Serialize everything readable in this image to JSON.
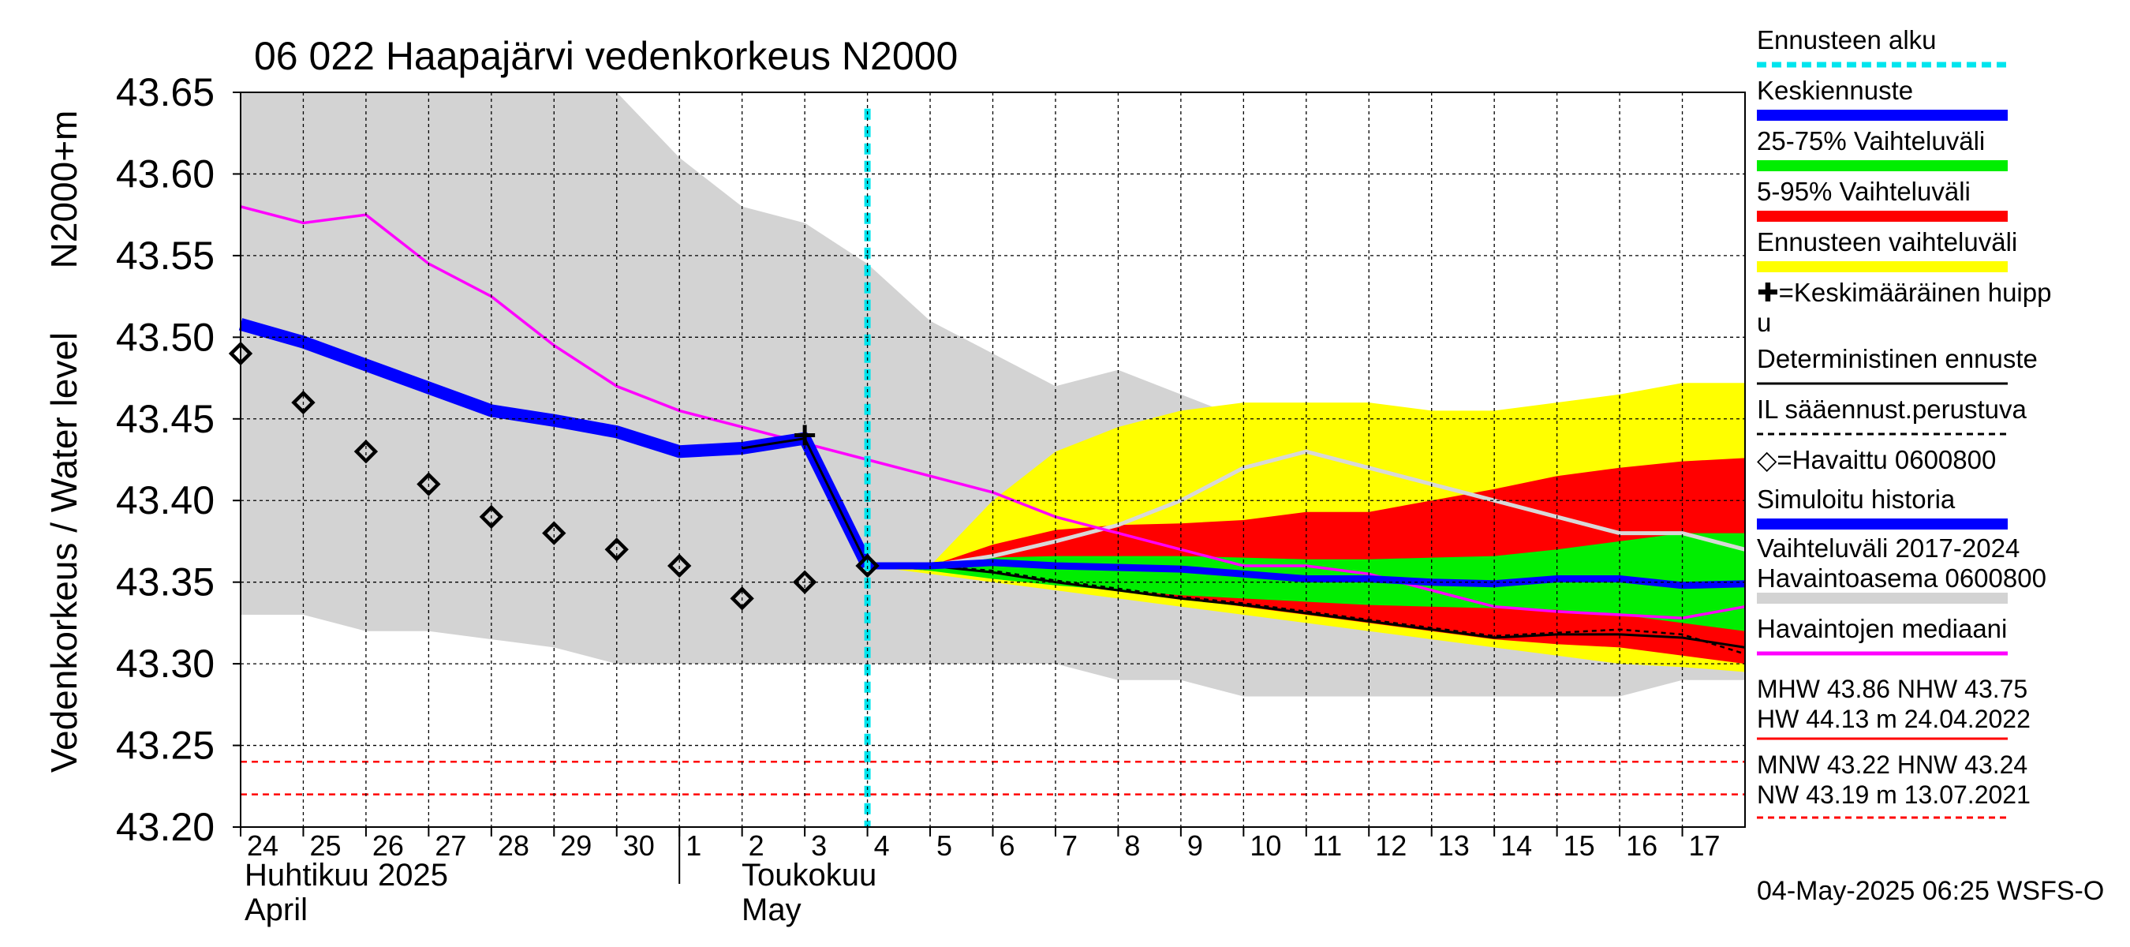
{
  "chart_data": {
    "type": "area",
    "title": "06 022 Haapajärvi vedenkorkeus N2000",
    "ylabel_primary": "Vedenkorkeus / Water level",
    "ylabel_secondary": "N2000+m",
    "ylim": [
      43.2,
      43.65
    ],
    "yticks": [
      "43.65",
      "43.60",
      "43.55",
      "43.50",
      "43.45",
      "43.40",
      "43.35",
      "43.30",
      "43.25",
      "43.20"
    ],
    "x_range_days": [
      0,
      24
    ],
    "x_tick_labels": [
      "24",
      "25",
      "26",
      "27",
      "28",
      "29",
      "30",
      "1",
      "2",
      "3",
      "4",
      "5",
      "6",
      "7",
      "8",
      "9",
      "10",
      "11",
      "12",
      "13",
      "14",
      "15",
      "16",
      "17"
    ],
    "month_labels": {
      "april_fi": "Huhtikuu  2025",
      "april_en": "April",
      "may_fi": "Toukokuu",
      "may_en": "May"
    },
    "forecast_start_day": 10,
    "grid": true,
    "timestamp": "04-May-2025 06:25 WSFS-O",
    "colors": {
      "history_band": "#d3d3d3",
      "forecast_range": "#ffff00",
      "range_5_95": "#ff0000",
      "range_25_75": "#00ee00",
      "mean_forecast": "#0000ff",
      "simulated_history": "#0000ff",
      "observed_median": "#ff00ff",
      "forecast_start": "#00e5ee",
      "il_forecast": "#d8d8d8",
      "ref_lines": "#ff0000"
    },
    "history_band": {
      "upper": [
        [
          0,
          43.65
        ],
        [
          6,
          43.65
        ],
        [
          7,
          43.61
        ],
        [
          8,
          43.58
        ],
        [
          9,
          43.57
        ],
        [
          10,
          43.545
        ],
        [
          11,
          43.51
        ],
        [
          12,
          43.49
        ],
        [
          13,
          43.47
        ],
        [
          14,
          43.48
        ],
        [
          15,
          43.465
        ],
        [
          16,
          43.45
        ],
        [
          17,
          43.44
        ],
        [
          18,
          43.435
        ],
        [
          19,
          43.43
        ],
        [
          20,
          43.425
        ],
        [
          21,
          43.415
        ],
        [
          22,
          43.41
        ],
        [
          23,
          43.4
        ],
        [
          24,
          43.39
        ]
      ],
      "lower": [
        [
          0,
          43.33
        ],
        [
          1,
          43.33
        ],
        [
          2,
          43.32
        ],
        [
          3,
          43.32
        ],
        [
          4,
          43.315
        ],
        [
          5,
          43.31
        ],
        [
          6,
          43.3
        ],
        [
          7,
          43.3
        ],
        [
          8,
          43.3
        ],
        [
          9,
          43.3
        ],
        [
          10,
          43.3
        ],
        [
          11,
          43.3
        ],
        [
          12,
          43.3
        ],
        [
          13,
          43.3
        ],
        [
          14,
          43.29
        ],
        [
          15,
          43.29
        ],
        [
          16,
          43.28
        ],
        [
          17,
          43.28
        ],
        [
          18,
          43.28
        ],
        [
          19,
          43.28
        ],
        [
          20,
          43.28
        ],
        [
          21,
          43.28
        ],
        [
          22,
          43.28
        ],
        [
          23,
          43.29
        ],
        [
          24,
          43.29
        ]
      ]
    },
    "forecast_range": {
      "upper": [
        [
          10,
          43.36
        ],
        [
          11,
          43.36
        ],
        [
          12,
          43.4
        ],
        [
          13,
          43.43
        ],
        [
          14,
          43.445
        ],
        [
          15,
          43.455
        ],
        [
          16,
          43.46
        ],
        [
          17,
          43.46
        ],
        [
          18,
          43.46
        ],
        [
          19,
          43.455
        ],
        [
          20,
          43.455
        ],
        [
          21,
          43.46
        ],
        [
          22,
          43.465
        ],
        [
          23,
          43.472
        ],
        [
          24,
          43.472
        ]
      ],
      "lower": [
        [
          10,
          43.36
        ],
        [
          11,
          43.355
        ],
        [
          12,
          43.35
        ],
        [
          13,
          43.345
        ],
        [
          14,
          43.34
        ],
        [
          15,
          43.335
        ],
        [
          16,
          43.33
        ],
        [
          17,
          43.325
        ],
        [
          18,
          43.32
        ],
        [
          19,
          43.315
        ],
        [
          20,
          43.31
        ],
        [
          21,
          43.305
        ],
        [
          22,
          43.3
        ],
        [
          23,
          43.298
        ],
        [
          24,
          43.295
        ]
      ]
    },
    "range_5_95": {
      "upper": [
        [
          10,
          43.36
        ],
        [
          11,
          43.36
        ],
        [
          12,
          43.373
        ],
        [
          13,
          43.382
        ],
        [
          14,
          43.385
        ],
        [
          15,
          43.386
        ],
        [
          16,
          43.388
        ],
        [
          17,
          43.393
        ],
        [
          18,
          43.393
        ],
        [
          19,
          43.4
        ],
        [
          20,
          43.407
        ],
        [
          21,
          43.415
        ],
        [
          22,
          43.42
        ],
        [
          23,
          43.424
        ],
        [
          24,
          43.426
        ]
      ],
      "lower": [
        [
          10,
          43.36
        ],
        [
          11,
          43.357
        ],
        [
          12,
          43.354
        ],
        [
          13,
          43.35
        ],
        [
          14,
          43.345
        ],
        [
          15,
          43.34
        ],
        [
          16,
          43.335
        ],
        [
          17,
          43.33
        ],
        [
          18,
          43.325
        ],
        [
          19,
          43.32
        ],
        [
          20,
          43.315
        ],
        [
          21,
          43.312
        ],
        [
          22,
          43.31
        ],
        [
          23,
          43.305
        ],
        [
          24,
          43.3
        ]
      ]
    },
    "range_25_75": {
      "upper": [
        [
          10,
          43.36
        ],
        [
          11,
          43.362
        ],
        [
          12,
          43.365
        ],
        [
          13,
          43.366
        ],
        [
          14,
          43.366
        ],
        [
          15,
          43.366
        ],
        [
          16,
          43.365
        ],
        [
          17,
          43.364
        ],
        [
          18,
          43.364
        ],
        [
          19,
          43.365
        ],
        [
          20,
          43.366
        ],
        [
          21,
          43.37
        ],
        [
          22,
          43.375
        ],
        [
          23,
          43.38
        ],
        [
          24,
          43.38
        ]
      ],
      "lower": [
        [
          10,
          43.36
        ],
        [
          11,
          43.357
        ],
        [
          12,
          43.352
        ],
        [
          13,
          43.348
        ],
        [
          14,
          43.345
        ],
        [
          15,
          43.342
        ],
        [
          16,
          43.34
        ],
        [
          17,
          43.338
        ],
        [
          18,
          43.336
        ],
        [
          19,
          43.335
        ],
        [
          20,
          43.334
        ],
        [
          21,
          43.333
        ],
        [
          22,
          43.33
        ],
        [
          23,
          43.325
        ],
        [
          24,
          43.32
        ]
      ]
    },
    "series": [
      {
        "name": "Keskiennuste",
        "points": [
          [
            10,
            43.36
          ],
          [
            11,
            43.36
          ],
          [
            12,
            43.362
          ],
          [
            13,
            43.36
          ],
          [
            14,
            43.359
          ],
          [
            15,
            43.358
          ],
          [
            16,
            43.355
          ],
          [
            17,
            43.352
          ],
          [
            18,
            43.352
          ],
          [
            19,
            43.35
          ],
          [
            20,
            43.349
          ],
          [
            21,
            43.352
          ],
          [
            22,
            43.352
          ],
          [
            23,
            43.348
          ],
          [
            24,
            43.349
          ]
        ]
      },
      {
        "name": "Simuloitu historia",
        "points": [
          [
            0,
            43.508
          ],
          [
            1,
            43.497
          ],
          [
            2,
            43.483
          ],
          [
            3,
            43.469
          ],
          [
            4,
            43.455
          ],
          [
            5,
            43.449
          ],
          [
            6,
            43.442
          ],
          [
            7,
            43.43
          ],
          [
            8,
            43.432
          ],
          [
            9,
            43.438
          ],
          [
            10,
            43.36
          ]
        ]
      },
      {
        "name": "Havaintojen mediaani",
        "points": [
          [
            0,
            43.58
          ],
          [
            1,
            43.57
          ],
          [
            2,
            43.575
          ],
          [
            3,
            43.545
          ],
          [
            4,
            43.525
          ],
          [
            5,
            43.495
          ],
          [
            6,
            43.47
          ],
          [
            7,
            43.455
          ],
          [
            8,
            43.445
          ],
          [
            9,
            43.435
          ],
          [
            10,
            43.425
          ],
          [
            11,
            43.415
          ],
          [
            12,
            43.405
          ],
          [
            13,
            43.39
          ],
          [
            14,
            43.38
          ],
          [
            15,
            43.37
          ],
          [
            16,
            43.36
          ],
          [
            17,
            43.36
          ],
          [
            18,
            43.355
          ],
          [
            19,
            43.345
          ],
          [
            20,
            43.335
          ],
          [
            21,
            43.332
          ],
          [
            22,
            43.33
          ],
          [
            23,
            43.328
          ],
          [
            24,
            43.335
          ]
        ]
      },
      {
        "name": "Deterministinen ennuste",
        "points": [
          [
            10,
            43.36
          ],
          [
            11,
            43.36
          ],
          [
            12,
            43.356
          ],
          [
            13,
            43.35
          ],
          [
            14,
            43.345
          ],
          [
            15,
            43.34
          ],
          [
            16,
            43.336
          ],
          [
            17,
            43.331
          ],
          [
            18,
            43.326
          ],
          [
            19,
            43.321
          ],
          [
            20,
            43.316
          ],
          [
            21,
            43.318
          ],
          [
            22,
            43.318
          ],
          [
            23,
            43.316
          ],
          [
            24,
            43.31
          ]
        ]
      },
      {
        "name": "IL sääennust.perustuva",
        "points": [
          [
            10,
            43.36
          ],
          [
            11,
            43.36
          ],
          [
            12,
            43.357
          ],
          [
            13,
            43.351
          ],
          [
            14,
            43.346
          ],
          [
            15,
            43.341
          ],
          [
            16,
            43.337
          ],
          [
            17,
            43.332
          ],
          [
            18,
            43.327
          ],
          [
            19,
            43.322
          ],
          [
            20,
            43.317
          ],
          [
            21,
            43.319
          ],
          [
            22,
            43.321
          ],
          [
            23,
            43.318
          ],
          [
            24,
            43.306
          ]
        ]
      },
      {
        "name": "IL forecast (grey)",
        "points": [
          [
            10,
            43.36
          ],
          [
            11,
            43.36
          ],
          [
            12,
            43.366
          ],
          [
            13,
            43.375
          ],
          [
            14,
            43.385
          ],
          [
            15,
            43.4
          ],
          [
            16,
            43.42
          ],
          [
            17,
            43.43
          ],
          [
            18,
            43.42
          ],
          [
            19,
            43.41
          ],
          [
            20,
            43.4
          ],
          [
            21,
            43.39
          ],
          [
            22,
            43.38
          ],
          [
            23,
            43.38
          ],
          [
            24,
            43.37
          ]
        ]
      }
    ],
    "observed": [
      [
        0,
        43.49
      ],
      [
        1,
        43.46
      ],
      [
        2,
        43.43
      ],
      [
        3,
        43.41
      ],
      [
        4,
        43.39
      ],
      [
        5,
        43.38
      ],
      [
        6,
        43.37
      ],
      [
        7,
        43.36
      ],
      [
        8,
        43.34
      ],
      [
        9,
        43.35
      ],
      [
        10,
        43.36
      ]
    ],
    "mean_peak": [
      9,
      43.44
    ],
    "reference_lines": [
      43.24,
      43.22
    ],
    "legend": {
      "items": [
        {
          "label": "Ennusteen alku",
          "kind": "dashed",
          "color": "#00e5ee"
        },
        {
          "label": "Keskiennuste",
          "kind": "thick",
          "color": "#0000ff"
        },
        {
          "label": "25-75% Vaihteluväli",
          "kind": "thick",
          "color": "#00ee00"
        },
        {
          "label": "5-95% Vaihteluväli",
          "kind": "thick",
          "color": "#ff0000"
        },
        {
          "label": "Ennusteen vaihteluväli",
          "kind": "thick",
          "color": "#ffff00"
        },
        {
          "label": "✚=Keskimääräinen huipp",
          "label2": "u",
          "kind": "none",
          "color": "#000000"
        },
        {
          "label": "Deterministinen ennuste",
          "kind": "thin",
          "color": "#000000"
        },
        {
          "label": "IL sääennust.perustuva",
          "kind": "dashed-thin",
          "color": "#000000"
        },
        {
          "label": "◇=Havaittu 0600800",
          "kind": "none",
          "color": "#000000"
        },
        {
          "label": "Simuloitu historia",
          "kind": "thick",
          "color": "#0000ff"
        },
        {
          "label": "Vaihteluväli 2017-2024",
          "label2": " Havaintoasema 0600800",
          "kind": "thick",
          "color": "#d3d3d3"
        },
        {
          "label": "Havaintojen mediaani",
          "kind": "medium",
          "color": "#ff00ff"
        }
      ],
      "stats": {
        "line1": "MHW  43.86 NHW  43.75",
        "line2": "HW  44.13 m 24.04.2022",
        "line3": "MNW  43.22 HNW  43.24",
        "line4": "NW  43.19 m 13.07.2021"
      }
    }
  }
}
